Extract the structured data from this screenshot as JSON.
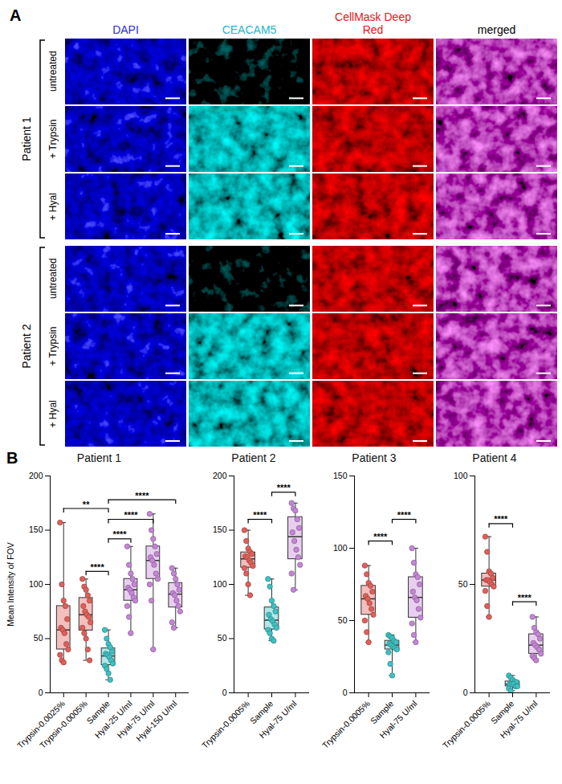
{
  "panel_a": {
    "label": "A",
    "channels": [
      {
        "name": "DAPI",
        "color": "#2b2bd9"
      },
      {
        "name": "CEACAM5",
        "color": "#22b8c6"
      },
      {
        "name": "CellMask Deep Red",
        "color": "#e8141c"
      },
      {
        "name": "merged",
        "color": "#000000"
      }
    ],
    "patients": [
      {
        "name": "Patient 1",
        "conditions": [
          "untreated",
          "+ Trypsin",
          "+ Hyal"
        ]
      },
      {
        "name": "Patient 2",
        "conditions": [
          "untreated",
          "+ Trypsin",
          "+ Hyal"
        ]
      }
    ]
  },
  "panel_b_label": "B",
  "chart_data": [
    {
      "type": "box",
      "title": "Patient 1",
      "y_label": "Mean Intensity of FOV",
      "categories": [
        "Trypsin-0.0025%",
        "Trypsin-0.0005%",
        "Sample",
        "Hyal-25 U/ml",
        "Hyal-75 U/ml",
        "Hyal-150 U/ml"
      ],
      "colors": [
        "#e0605a",
        "#e0605a",
        "#3fc1c3",
        "#c586d6",
        "#c586d6",
        "#c586d6"
      ],
      "points": [
        [
          157,
          100,
          85,
          80,
          68,
          60,
          58,
          55,
          45,
          40,
          35,
          30,
          28
        ],
        [
          105,
          98,
          95,
          90,
          85,
          80,
          75,
          72,
          70,
          65,
          60,
          55,
          50,
          40,
          30
        ],
        [
          58,
          50,
          45,
          42,
          38,
          36,
          35,
          33,
          30,
          27,
          25,
          22,
          18,
          12
        ],
        [
          135,
          118,
          110,
          105,
          100,
          97,
          95,
          92,
          88,
          85,
          80,
          70,
          55
        ],
        [
          165,
          150,
          142,
          135,
          128,
          125,
          122,
          118,
          110,
          105,
          100,
          85,
          40
        ],
        [
          115,
          110,
          105,
          100,
          95,
          92,
          90,
          85,
          80,
          75,
          65,
          60
        ]
      ],
      "ylim": [
        0,
        200
      ],
      "yticks": [
        0,
        50,
        100,
        150,
        200
      ],
      "significance": [
        {
          "from": "Trypsin-0.0025%",
          "to": "Sample",
          "y": 170,
          "label": "**"
        },
        {
          "from": "Trypsin-0.0005%",
          "to": "Sample",
          "y": 112,
          "label": "****"
        },
        {
          "from": "Sample",
          "to": "Hyal-25 U/ml",
          "y": 142,
          "label": "****"
        },
        {
          "from": "Sample",
          "to": "Hyal-75 U/ml",
          "y": 160,
          "label": "****"
        },
        {
          "from": "Sample",
          "to": "Hyal-150 U/ml",
          "y": 178,
          "label": "****"
        }
      ]
    },
    {
      "type": "box",
      "title": "Patient 2",
      "categories": [
        "Trypsin-0.0005%",
        "Sample",
        "Hyal-75 U/ml"
      ],
      "colors": [
        "#e0605a",
        "#3fc1c3",
        "#c586d6"
      ],
      "points": [
        [
          150,
          140,
          133,
          130,
          128,
          126,
          125,
          122,
          120,
          117,
          115,
          110,
          100,
          90
        ],
        [
          105,
          98,
          85,
          80,
          75,
          72,
          68,
          66,
          63,
          60,
          58,
          55,
          50,
          48
        ],
        [
          175,
          170,
          168,
          160,
          152,
          148,
          140,
          132,
          125,
          118,
          110,
          95
        ]
      ],
      "ylim": [
        0,
        200
      ],
      "yticks": [
        0,
        50,
        100,
        150,
        200
      ],
      "significance": [
        {
          "from": "Trypsin-0.0005%",
          "to": "Sample",
          "y": 160,
          "label": "****"
        },
        {
          "from": "Sample",
          "to": "Hyal-75 U/ml",
          "y": 185,
          "label": "****"
        }
      ]
    },
    {
      "type": "box",
      "title": "Patient 3",
      "categories": [
        "Trypsin-0.0005%",
        "Sample",
        "Hyal-75 U/ml"
      ],
      "colors": [
        "#e0605a",
        "#3fc1c3",
        "#c586d6"
      ],
      "points": [
        [
          88,
          82,
          76,
          74,
          70,
          67,
          65,
          62,
          58,
          54,
          50,
          42,
          35
        ],
        [
          40,
          39,
          38,
          36,
          35,
          34,
          33,
          32,
          31,
          30,
          28,
          20,
          12
        ],
        [
          100,
          90,
          82,
          80,
          75,
          70,
          66,
          64,
          58,
          52,
          48,
          40,
          35
        ]
      ],
      "ylim": [
        0,
        150
      ],
      "yticks": [
        0,
        50,
        100,
        150
      ],
      "significance": [
        {
          "from": "Trypsin-0.0005%",
          "to": "Sample",
          "y": 105,
          "label": "****"
        },
        {
          "from": "Sample",
          "to": "Hyal-75 U/ml",
          "y": 120,
          "label": "****"
        }
      ]
    },
    {
      "type": "box",
      "title": "Patient 4",
      "categories": [
        "Trypsin-0.0005%",
        "Sample",
        "Hyal-75 U/ml"
      ],
      "colors": [
        "#e0605a",
        "#3fc1c3",
        "#c586d6"
      ],
      "points": [
        [
          72,
          65,
          56,
          55,
          53,
          52,
          52,
          51,
          50,
          49,
          47,
          40,
          35
        ],
        [
          8,
          7,
          6,
          5,
          5,
          4,
          4,
          4,
          3,
          3,
          2,
          1
        ],
        [
          35,
          30,
          28,
          27,
          25,
          23,
          22,
          21,
          20,
          18,
          17,
          16,
          15
        ]
      ],
      "ylim": [
        0,
        100
      ],
      "yticks": [
        0,
        50,
        100
      ],
      "significance": [
        {
          "from": "Trypsin-0.0005%",
          "to": "Sample",
          "y": 78,
          "label": "****"
        },
        {
          "from": "Sample",
          "to": "Hyal-75 U/ml",
          "y": 42,
          "label": "****"
        }
      ]
    }
  ]
}
